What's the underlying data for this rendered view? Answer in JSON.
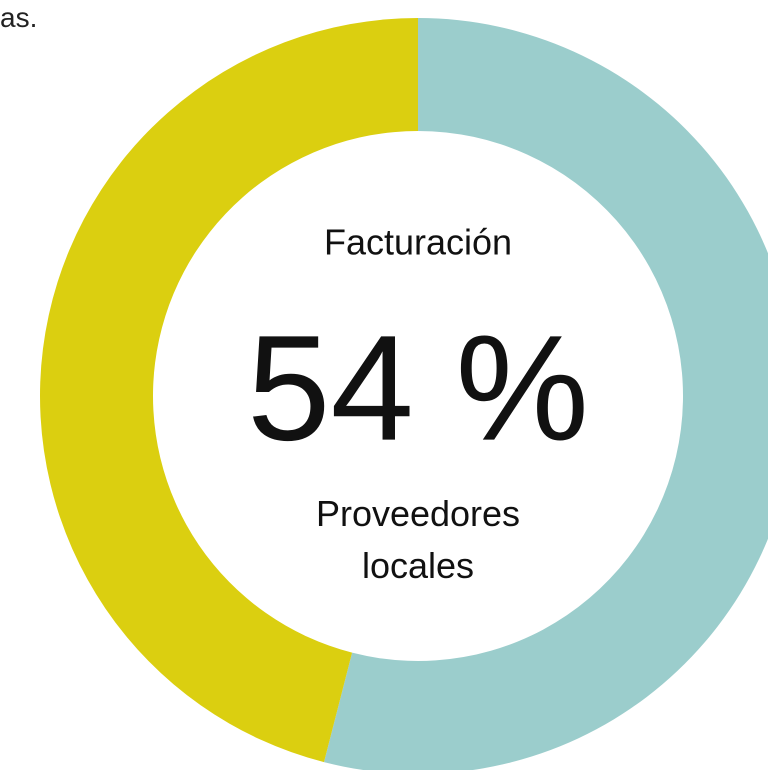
{
  "text": "as.",
  "chart_data": {
    "type": "donut",
    "title": "Facturación",
    "categories": [
      "Proveedores locales",
      null
    ],
    "values": [
      54,
      46
    ],
    "value_labels": [
      "54 %",
      null
    ],
    "colors": [
      "#9bcdcc",
      "#dbcf10"
    ]
  }
}
